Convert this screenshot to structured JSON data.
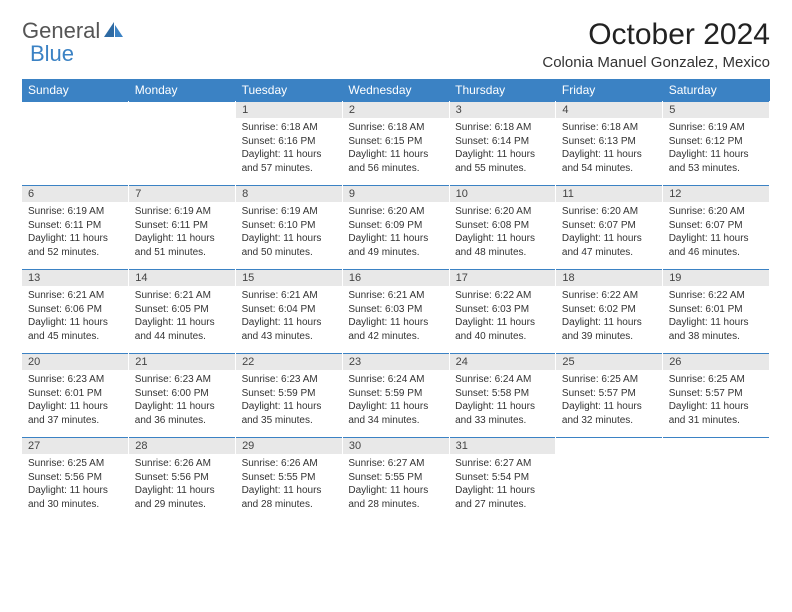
{
  "logo": {
    "part1": "General",
    "part2": "Blue"
  },
  "title": "October 2024",
  "location": "Colonia Manuel Gonzalez, Mexico",
  "colors": {
    "accent": "#3b82c4",
    "daynum_bg": "#e8e8e8",
    "text": "#333333",
    "bg": "#ffffff"
  },
  "headers": [
    "Sunday",
    "Monday",
    "Tuesday",
    "Wednesday",
    "Thursday",
    "Friday",
    "Saturday"
  ],
  "weeks": [
    [
      null,
      null,
      {
        "n": "1",
        "sr": "Sunrise: 6:18 AM",
        "ss": "Sunset: 6:16 PM",
        "d1": "Daylight: 11 hours",
        "d2": "and 57 minutes."
      },
      {
        "n": "2",
        "sr": "Sunrise: 6:18 AM",
        "ss": "Sunset: 6:15 PM",
        "d1": "Daylight: 11 hours",
        "d2": "and 56 minutes."
      },
      {
        "n": "3",
        "sr": "Sunrise: 6:18 AM",
        "ss": "Sunset: 6:14 PM",
        "d1": "Daylight: 11 hours",
        "d2": "and 55 minutes."
      },
      {
        "n": "4",
        "sr": "Sunrise: 6:18 AM",
        "ss": "Sunset: 6:13 PM",
        "d1": "Daylight: 11 hours",
        "d2": "and 54 minutes."
      },
      {
        "n": "5",
        "sr": "Sunrise: 6:19 AM",
        "ss": "Sunset: 6:12 PM",
        "d1": "Daylight: 11 hours",
        "d2": "and 53 minutes."
      }
    ],
    [
      {
        "n": "6",
        "sr": "Sunrise: 6:19 AM",
        "ss": "Sunset: 6:11 PM",
        "d1": "Daylight: 11 hours",
        "d2": "and 52 minutes."
      },
      {
        "n": "7",
        "sr": "Sunrise: 6:19 AM",
        "ss": "Sunset: 6:11 PM",
        "d1": "Daylight: 11 hours",
        "d2": "and 51 minutes."
      },
      {
        "n": "8",
        "sr": "Sunrise: 6:19 AM",
        "ss": "Sunset: 6:10 PM",
        "d1": "Daylight: 11 hours",
        "d2": "and 50 minutes."
      },
      {
        "n": "9",
        "sr": "Sunrise: 6:20 AM",
        "ss": "Sunset: 6:09 PM",
        "d1": "Daylight: 11 hours",
        "d2": "and 49 minutes."
      },
      {
        "n": "10",
        "sr": "Sunrise: 6:20 AM",
        "ss": "Sunset: 6:08 PM",
        "d1": "Daylight: 11 hours",
        "d2": "and 48 minutes."
      },
      {
        "n": "11",
        "sr": "Sunrise: 6:20 AM",
        "ss": "Sunset: 6:07 PM",
        "d1": "Daylight: 11 hours",
        "d2": "and 47 minutes."
      },
      {
        "n": "12",
        "sr": "Sunrise: 6:20 AM",
        "ss": "Sunset: 6:07 PM",
        "d1": "Daylight: 11 hours",
        "d2": "and 46 minutes."
      }
    ],
    [
      {
        "n": "13",
        "sr": "Sunrise: 6:21 AM",
        "ss": "Sunset: 6:06 PM",
        "d1": "Daylight: 11 hours",
        "d2": "and 45 minutes."
      },
      {
        "n": "14",
        "sr": "Sunrise: 6:21 AM",
        "ss": "Sunset: 6:05 PM",
        "d1": "Daylight: 11 hours",
        "d2": "and 44 minutes."
      },
      {
        "n": "15",
        "sr": "Sunrise: 6:21 AM",
        "ss": "Sunset: 6:04 PM",
        "d1": "Daylight: 11 hours",
        "d2": "and 43 minutes."
      },
      {
        "n": "16",
        "sr": "Sunrise: 6:21 AM",
        "ss": "Sunset: 6:03 PM",
        "d1": "Daylight: 11 hours",
        "d2": "and 42 minutes."
      },
      {
        "n": "17",
        "sr": "Sunrise: 6:22 AM",
        "ss": "Sunset: 6:03 PM",
        "d1": "Daylight: 11 hours",
        "d2": "and 40 minutes."
      },
      {
        "n": "18",
        "sr": "Sunrise: 6:22 AM",
        "ss": "Sunset: 6:02 PM",
        "d1": "Daylight: 11 hours",
        "d2": "and 39 minutes."
      },
      {
        "n": "19",
        "sr": "Sunrise: 6:22 AM",
        "ss": "Sunset: 6:01 PM",
        "d1": "Daylight: 11 hours",
        "d2": "and 38 minutes."
      }
    ],
    [
      {
        "n": "20",
        "sr": "Sunrise: 6:23 AM",
        "ss": "Sunset: 6:01 PM",
        "d1": "Daylight: 11 hours",
        "d2": "and 37 minutes."
      },
      {
        "n": "21",
        "sr": "Sunrise: 6:23 AM",
        "ss": "Sunset: 6:00 PM",
        "d1": "Daylight: 11 hours",
        "d2": "and 36 minutes."
      },
      {
        "n": "22",
        "sr": "Sunrise: 6:23 AM",
        "ss": "Sunset: 5:59 PM",
        "d1": "Daylight: 11 hours",
        "d2": "and 35 minutes."
      },
      {
        "n": "23",
        "sr": "Sunrise: 6:24 AM",
        "ss": "Sunset: 5:59 PM",
        "d1": "Daylight: 11 hours",
        "d2": "and 34 minutes."
      },
      {
        "n": "24",
        "sr": "Sunrise: 6:24 AM",
        "ss": "Sunset: 5:58 PM",
        "d1": "Daylight: 11 hours",
        "d2": "and 33 minutes."
      },
      {
        "n": "25",
        "sr": "Sunrise: 6:25 AM",
        "ss": "Sunset: 5:57 PM",
        "d1": "Daylight: 11 hours",
        "d2": "and 32 minutes."
      },
      {
        "n": "26",
        "sr": "Sunrise: 6:25 AM",
        "ss": "Sunset: 5:57 PM",
        "d1": "Daylight: 11 hours",
        "d2": "and 31 minutes."
      }
    ],
    [
      {
        "n": "27",
        "sr": "Sunrise: 6:25 AM",
        "ss": "Sunset: 5:56 PM",
        "d1": "Daylight: 11 hours",
        "d2": "and 30 minutes."
      },
      {
        "n": "28",
        "sr": "Sunrise: 6:26 AM",
        "ss": "Sunset: 5:56 PM",
        "d1": "Daylight: 11 hours",
        "d2": "and 29 minutes."
      },
      {
        "n": "29",
        "sr": "Sunrise: 6:26 AM",
        "ss": "Sunset: 5:55 PM",
        "d1": "Daylight: 11 hours",
        "d2": "and 28 minutes."
      },
      {
        "n": "30",
        "sr": "Sunrise: 6:27 AM",
        "ss": "Sunset: 5:55 PM",
        "d1": "Daylight: 11 hours",
        "d2": "and 28 minutes."
      },
      {
        "n": "31",
        "sr": "Sunrise: 6:27 AM",
        "ss": "Sunset: 5:54 PM",
        "d1": "Daylight: 11 hours",
        "d2": "and 27 minutes."
      },
      null,
      null
    ]
  ]
}
